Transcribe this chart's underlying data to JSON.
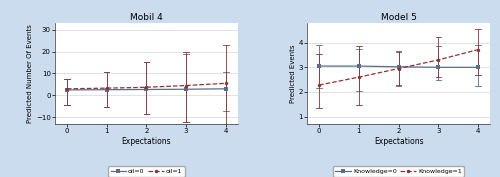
{
  "panel1": {
    "title": "Mobil 4",
    "xlabel": "Expectations",
    "ylabel": "Predicted Number Of Events",
    "ylim": [
      -13,
      33
    ],
    "yticks": [
      -10,
      0,
      10,
      20,
      30
    ],
    "xlim": [
      -0.3,
      4.3
    ],
    "xticks": [
      0,
      1,
      2,
      3,
      4
    ],
    "line1": {
      "x": [
        0,
        1,
        2,
        3,
        4
      ],
      "y": [
        2.5,
        2.6,
        2.7,
        2.8,
        3.0
      ],
      "ci_high": [
        7.5,
        10.5,
        15.0,
        19.0,
        10.5
      ],
      "ci_low": [
        -4.5,
        -5.5,
        -8.5,
        -12.0,
        -7.0
      ],
      "label": "oil=0",
      "color": "#5a6e8c",
      "linestyle": "solid"
    },
    "line2": {
      "x": [
        0,
        1,
        2,
        3,
        4
      ],
      "y": [
        3.0,
        3.3,
        3.7,
        4.5,
        5.5
      ],
      "ci_high": [
        7.5,
        10.5,
        15.0,
        20.0,
        23.0
      ],
      "ci_low": [
        -4.5,
        -5.5,
        -8.5,
        -12.0,
        -13.0
      ],
      "label": "oil=1",
      "color": "#8b3535",
      "linestyle": "dashed"
    }
  },
  "panel2": {
    "title": "Model 5",
    "xlabel": "Expectations",
    "ylabel": "Predicted Events",
    "ylim": [
      0.7,
      4.8
    ],
    "yticks": [
      1,
      2,
      3,
      4
    ],
    "xlim": [
      -0.3,
      4.3
    ],
    "xticks": [
      0,
      1,
      2,
      3,
      4
    ],
    "line1": {
      "x": [
        0,
        1,
        2,
        3,
        4
      ],
      "y": [
        3.05,
        3.05,
        3.02,
        3.0,
        3.0
      ],
      "ci_high": [
        3.9,
        3.75,
        3.65,
        3.85,
        3.9
      ],
      "ci_low": [
        2.15,
        2.05,
        2.25,
        2.5,
        2.25
      ],
      "label": "Knowledge=0",
      "color": "#5a6e8c",
      "linestyle": "solid"
    },
    "line2": {
      "x": [
        0,
        1,
        2,
        3,
        4
      ],
      "y": [
        2.28,
        2.6,
        2.95,
        3.3,
        3.72
      ],
      "ci_high": [
        3.55,
        3.85,
        3.62,
        4.25,
        4.55
      ],
      "ci_low": [
        1.35,
        1.45,
        2.28,
        2.6,
        2.7
      ],
      "label": "Knowledge=1",
      "color": "#8b3535",
      "linestyle": "dashed"
    }
  },
  "fig_bg_color": "#ccdcef",
  "plot_bg_color": "#ffffff"
}
